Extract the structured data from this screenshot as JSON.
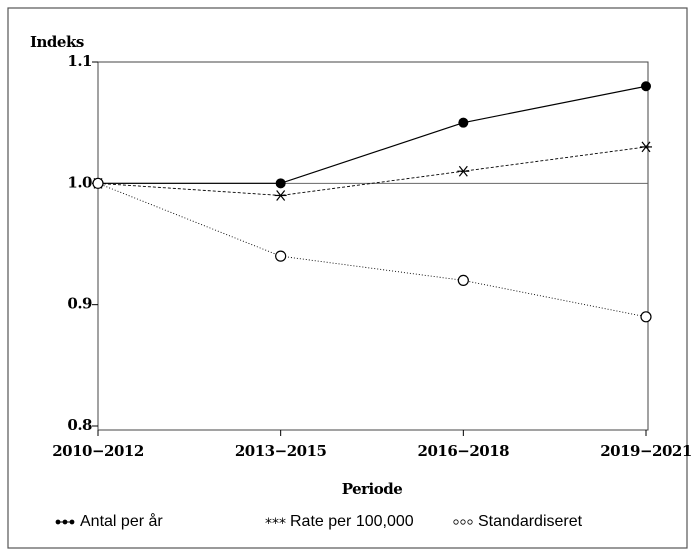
{
  "chart_data": {
    "type": "line",
    "y_label": "Indeks",
    "x_label": "Periode",
    "categories": [
      "2010−2012",
      "2013−2015",
      "2016−2018",
      "2019−2021"
    ],
    "series": [
      {
        "name": "Antal per år",
        "color": "#000000",
        "marker": "filled-circle",
        "dash": "solid",
        "values": [
          1.0,
          1.0,
          1.05,
          1.08
        ]
      },
      {
        "name": "Rate per 100,000",
        "color": "#000000",
        "marker": "asterisk",
        "dash": "dashed",
        "values": [
          1.0,
          0.99,
          1.01,
          1.03
        ]
      },
      {
        "name": "Standardiseret",
        "color": "#000000",
        "marker": "open-circle",
        "dash": "dotted",
        "values": [
          1.0,
          0.94,
          0.92,
          0.89
        ]
      }
    ],
    "ylim": [
      0.8,
      1.1
    ],
    "yticks": [
      {
        "value": 0.8,
        "label": "0.8"
      },
      {
        "value": 0.9,
        "label": "0.9"
      },
      {
        "value": 1,
        "label": "1.0"
      },
      {
        "value": 1.1,
        "label": "1.1"
      }
    ],
    "reference_line": 1
  }
}
